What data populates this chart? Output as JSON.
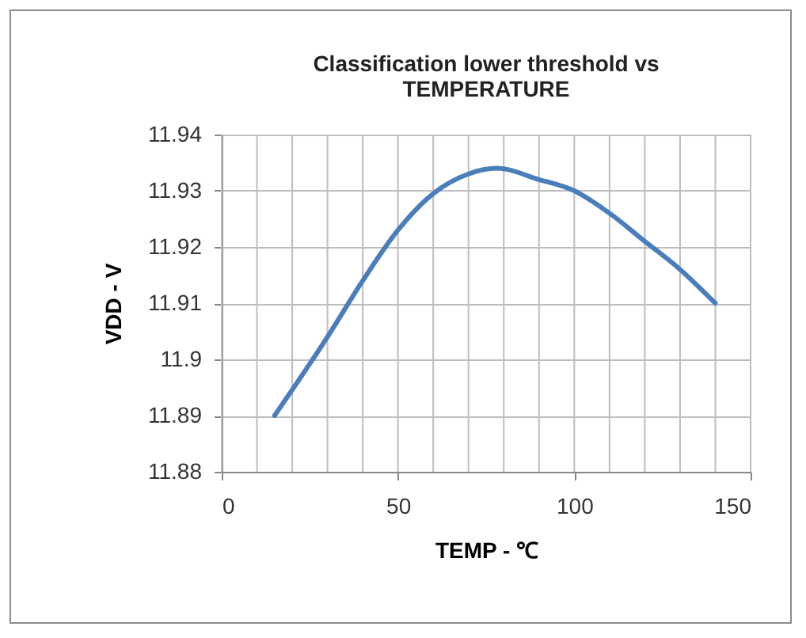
{
  "chart_data": {
    "type": "line",
    "title": "Classification lower threshold vs TEMPERATURE",
    "xlabel": "TEMP - ℃",
    "ylabel": "VDD - V",
    "x": [
      15,
      30,
      40,
      50,
      60,
      70,
      78,
      90,
      100,
      110,
      120,
      130,
      140
    ],
    "series": [
      {
        "color": "#4a7ebb",
        "values": [
          11.89,
          11.904,
          11.914,
          11.923,
          11.9295,
          11.933,
          11.934,
          11.932,
          11.93,
          11.926,
          11.921,
          11.916,
          11.91
        ]
      }
    ],
    "xlim": [
      0,
      150
    ],
    "xticks": [
      0,
      50,
      100,
      150
    ],
    "ylim": [
      11.88,
      11.94
    ],
    "yticks": [
      11.88,
      11.89,
      11.9,
      11.91,
      11.92,
      11.93,
      11.94
    ],
    "grid": true,
    "marker": "none",
    "line_style": "solid"
  }
}
